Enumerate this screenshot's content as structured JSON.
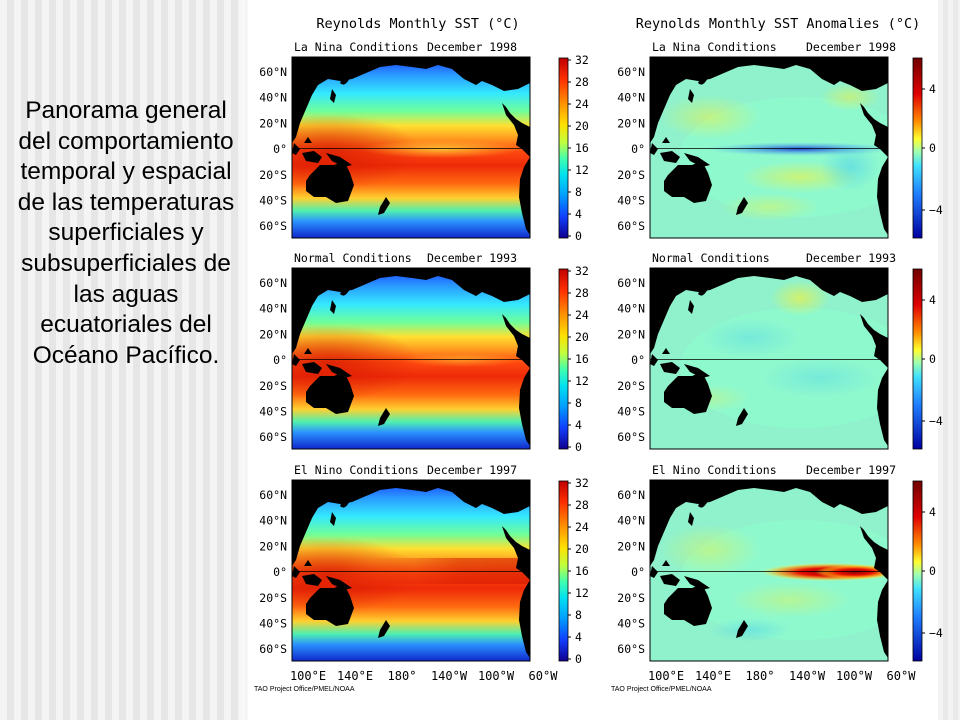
{
  "caption": "Panorama general del comportamiento temporal y espacial de las temperaturas superficiales y subsuperficiales de las aguas ecuatoriales del Océano Pacífico.",
  "figure": {
    "col_titles": [
      "Reynolds Monthly SST (°C)",
      "Reynolds Monthly SST Anomalies (°C)"
    ],
    "lat_labels": [
      "60°N",
      "40°N",
      "20°N",
      "0°",
      "20°S",
      "40°S",
      "60°S"
    ],
    "lon_labels": [
      "100°E",
      "140°E",
      "180°",
      "140°W",
      "100°W",
      "60°W"
    ],
    "credit": "TAO Project Office/PMEL/NOAA",
    "panels": [
      {
        "condition": "La Nina Conditions",
        "date": "December 1998"
      },
      {
        "condition": "Normal Conditions",
        "date": "December 1993"
      },
      {
        "condition": "El Nino Conditions",
        "date": "December 1997"
      }
    ],
    "sst_scale": {
      "ticks": [
        "32",
        "28",
        "24",
        "20",
        "16",
        "12",
        "8",
        "4",
        "0"
      ],
      "colors": [
        "#cc0000",
        "#ff3300",
        "#ff8800",
        "#ffd000",
        "#e0ff40",
        "#60ff90",
        "#00e0e0",
        "#0090ff",
        "#1030e0",
        "#0a0a90"
      ]
    },
    "anom_scale": {
      "ticks": [
        "4",
        "0",
        "−4"
      ],
      "colors": [
        "#800000",
        "#e00000",
        "#ff9000",
        "#ffff40",
        "#80ffc0",
        "#40c0ff",
        "#2060ff",
        "#0000a0"
      ]
    },
    "land_color": "#000000"
  }
}
